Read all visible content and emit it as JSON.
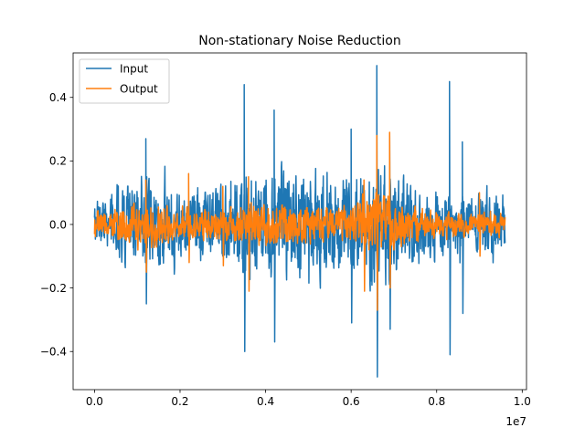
{
  "chart_data": {
    "type": "line",
    "title": "Non-stationary Noise Reduction",
    "xlabel": "",
    "ylabel": "",
    "x_offset_label": "1e7",
    "xlim": [
      -500000,
      10100000
    ],
    "ylim": [
      -0.52,
      0.54
    ],
    "x_ticks": [
      {
        "value": 0,
        "label": "0.0"
      },
      {
        "value": 2000000,
        "label": "0.2"
      },
      {
        "value": 4000000,
        "label": "0.4"
      },
      {
        "value": 6000000,
        "label": "0.6"
      },
      {
        "value": 8000000,
        "label": "0.8"
      },
      {
        "value": 10000000,
        "label": "1.0"
      }
    ],
    "y_ticks": [
      {
        "value": -0.4,
        "label": "−0.4"
      },
      {
        "value": -0.2,
        "label": "−0.2"
      },
      {
        "value": 0.0,
        "label": "0.0"
      },
      {
        "value": 0.2,
        "label": "0.2"
      },
      {
        "value": 0.4,
        "label": "0.4"
      }
    ],
    "grid": false,
    "legend_position": "top-left",
    "x_range": [
      0,
      9600000
    ],
    "series": [
      {
        "name": "Input",
        "color": "#1f77b4",
        "amplitude_envelope": [
          [
            0,
            0.09
          ],
          [
            300000,
            0.1
          ],
          [
            600000,
            0.18
          ],
          [
            900000,
            0.15
          ],
          [
            1200000,
            0.2
          ],
          [
            1500000,
            0.16
          ],
          [
            1800000,
            0.15
          ],
          [
            2100000,
            0.14
          ],
          [
            2400000,
            0.16
          ],
          [
            2700000,
            0.15
          ],
          [
            3000000,
            0.17
          ],
          [
            3300000,
            0.19
          ],
          [
            3600000,
            0.22
          ],
          [
            3900000,
            0.21
          ],
          [
            4200000,
            0.23
          ],
          [
            4500000,
            0.2
          ],
          [
            4800000,
            0.22
          ],
          [
            5100000,
            0.21
          ],
          [
            5400000,
            0.22
          ],
          [
            5700000,
            0.2
          ],
          [
            6000000,
            0.19
          ],
          [
            6300000,
            0.21
          ],
          [
            6600000,
            0.26
          ],
          [
            6900000,
            0.22
          ],
          [
            7200000,
            0.18
          ],
          [
            7500000,
            0.16
          ],
          [
            7800000,
            0.15
          ],
          [
            8100000,
            0.15
          ],
          [
            8400000,
            0.14
          ],
          [
            8700000,
            0.13
          ],
          [
            9000000,
            0.14
          ],
          [
            9300000,
            0.15
          ],
          [
            9600000,
            0.13
          ]
        ],
        "spikes": [
          [
            3500000,
            0.44,
            -0.4
          ],
          [
            4200000,
            0.36,
            -0.37
          ],
          [
            6000000,
            0.3,
            -0.31
          ],
          [
            6600000,
            0.5,
            -0.48
          ],
          [
            6900000,
            0.28,
            -0.33
          ],
          [
            8300000,
            0.45,
            -0.41
          ],
          [
            1200000,
            0.27,
            -0.25
          ],
          [
            8600000,
            0.26,
            -0.28
          ]
        ]
      },
      {
        "name": "Output",
        "color": "#ff7f0e",
        "amplitude_envelope": [
          [
            0,
            0.05
          ],
          [
            600000,
            0.07
          ],
          [
            1200000,
            0.09
          ],
          [
            1800000,
            0.07
          ],
          [
            2400000,
            0.06
          ],
          [
            3000000,
            0.07
          ],
          [
            3600000,
            0.09
          ],
          [
            4200000,
            0.09
          ],
          [
            4800000,
            0.08
          ],
          [
            5400000,
            0.07
          ],
          [
            6000000,
            0.08
          ],
          [
            6600000,
            0.12
          ],
          [
            7200000,
            0.08
          ],
          [
            7800000,
            0.06
          ],
          [
            8400000,
            0.05
          ],
          [
            9000000,
            0.05
          ],
          [
            9600000,
            0.06
          ]
        ],
        "spikes": [
          [
            1200000,
            0.14,
            -0.15
          ],
          [
            2200000,
            0.16,
            -0.12
          ],
          [
            3600000,
            0.15,
            -0.21
          ],
          [
            6600000,
            0.28,
            -0.27
          ],
          [
            6900000,
            0.29,
            -0.2
          ],
          [
            6300000,
            0.14,
            -0.21
          ],
          [
            3000000,
            0.12,
            -0.13
          ],
          [
            9000000,
            0.1,
            -0.1
          ]
        ]
      }
    ]
  }
}
